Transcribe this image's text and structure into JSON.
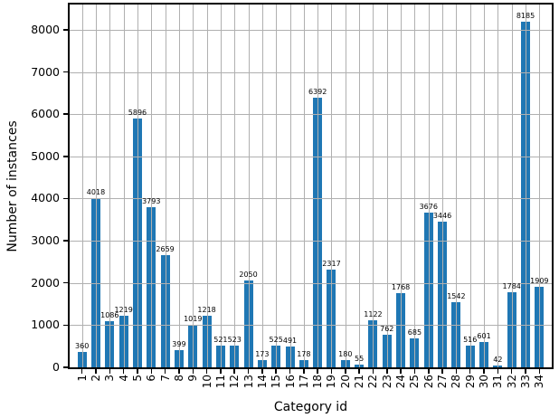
{
  "chart_data": {
    "type": "bar",
    "title": "",
    "xlabel": "Category id",
    "ylabel": "Number of instances",
    "categories": [
      1,
      2,
      3,
      4,
      5,
      6,
      7,
      8,
      9,
      10,
      11,
      12,
      13,
      14,
      15,
      16,
      17,
      18,
      19,
      20,
      21,
      22,
      23,
      24,
      25,
      26,
      27,
      28,
      29,
      30,
      31,
      32,
      33,
      34
    ],
    "values": [
      360,
      4018,
      1086,
      1219,
      5896,
      3793,
      2659,
      399,
      1019,
      1218,
      521,
      523,
      2050,
      173,
      525,
      491,
      178,
      6392,
      2317,
      180,
      55,
      1122,
      762,
      1768,
      685,
      3676,
      3446,
      1542,
      516,
      601,
      42,
      1784,
      8185,
      1909
    ],
    "yticks": [
      0,
      1000,
      2000,
      3000,
      4000,
      5000,
      6000,
      7000,
      8000
    ],
    "ylim": [
      0,
      8600
    ],
    "grid": true,
    "grid_position": "above-bars",
    "legend": "none",
    "value_labels": true,
    "bar_color": "#1f77b4",
    "grid_color": "#b0b0b0",
    "axis_color": "#000000",
    "background_color": "#ffffff"
  }
}
